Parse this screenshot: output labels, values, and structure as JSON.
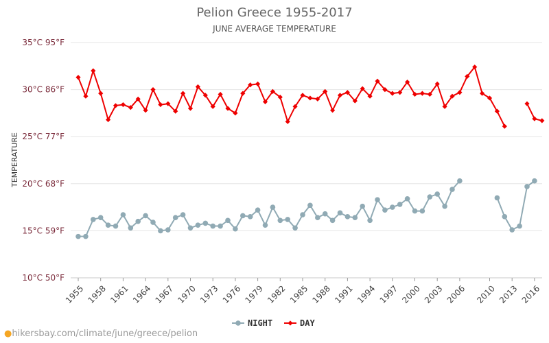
{
  "chart_data": {
    "type": "line",
    "title": "Pelion Greece 1955-2017",
    "subtitle": "JUNE AVERAGE TEMPERATURE",
    "ylabel": "TEMPERATURE",
    "ylim": [
      10,
      35
    ],
    "y_ticks": [
      {
        "value": 10,
        "label": "10°C 50°F"
      },
      {
        "value": 15,
        "label": "15°C 59°F"
      },
      {
        "value": 20,
        "label": "20°C 68°F"
      },
      {
        "value": 25,
        "label": "25°C 77°F"
      },
      {
        "value": 30,
        "label": "30°C 86°F"
      },
      {
        "value": 35,
        "label": "35°C 95°F"
      }
    ],
    "x_ticks": [
      "1955",
      "1958",
      "1961",
      "1964",
      "1967",
      "1970",
      "1973",
      "1976",
      "1979",
      "1982",
      "1985",
      "1988",
      "1991",
      "1994",
      "1997",
      "2000",
      "2003",
      "2006",
      "2010",
      "2013",
      "2016"
    ],
    "x": [
      1955,
      1956,
      1957,
      1958,
      1959,
      1960,
      1961,
      1962,
      1963,
      1964,
      1965,
      1966,
      1967,
      1968,
      1969,
      1970,
      1971,
      1972,
      1973,
      1974,
      1975,
      1976,
      1977,
      1978,
      1979,
      1980,
      1981,
      1982,
      1983,
      1984,
      1985,
      1986,
      1987,
      1988,
      1989,
      1990,
      1991,
      1992,
      1993,
      1994,
      1995,
      1996,
      1997,
      1998,
      1999,
      2000,
      2001,
      2002,
      2003,
      2004,
      2005,
      2006,
      2007,
      2008,
      2009,
      2010,
      2011,
      2012,
      2013,
      2014,
      2015,
      2016,
      2017
    ],
    "series": [
      {
        "name": "NIGHT",
        "color": "#90aab4",
        "values": [
          14.4,
          14.4,
          16.2,
          16.4,
          15.6,
          15.5,
          16.7,
          15.3,
          16.0,
          16.6,
          15.9,
          15.0,
          15.1,
          16.4,
          16.7,
          15.3,
          15.6,
          15.8,
          15.5,
          15.5,
          16.1,
          15.2,
          16.6,
          16.5,
          17.2,
          15.6,
          17.5,
          16.1,
          16.2,
          15.3,
          16.7,
          17.7,
          16.4,
          16.8,
          16.1,
          16.9,
          16.5,
          16.4,
          17.6,
          16.1,
          18.3,
          17.2,
          17.5,
          17.8,
          18.4,
          17.1,
          17.1,
          18.6,
          18.9,
          17.6,
          19.4,
          20.3,
          null,
          null,
          null,
          null,
          18.5,
          16.5,
          15.1,
          15.5,
          19.7,
          20.3,
          null
        ]
      },
      {
        "name": "DAY",
        "color": "#ee0000",
        "values": [
          31.3,
          29.3,
          32.0,
          29.6,
          26.8,
          28.3,
          28.4,
          28.1,
          29.0,
          27.8,
          30.0,
          28.4,
          28.5,
          27.7,
          29.6,
          28.0,
          30.3,
          29.4,
          28.2,
          29.5,
          28.0,
          27.5,
          29.6,
          30.5,
          30.6,
          28.7,
          29.8,
          29.2,
          26.6,
          28.2,
          29.4,
          29.1,
          29.0,
          29.8,
          27.8,
          29.4,
          29.7,
          28.8,
          30.1,
          29.3,
          30.9,
          30.0,
          29.6,
          29.7,
          30.8,
          29.5,
          29.6,
          29.5,
          30.6,
          28.2,
          29.3,
          29.7,
          31.4,
          32.4,
          29.6,
          29.1,
          27.7,
          26.1,
          null,
          null,
          28.5,
          26.9,
          26.7
        ]
      }
    ],
    "legend_position": "bottom-center",
    "grid": true
  },
  "credit": {
    "text": "hikersbay.com/climate/june/greece/pelion",
    "icon": "location-pin-icon"
  }
}
